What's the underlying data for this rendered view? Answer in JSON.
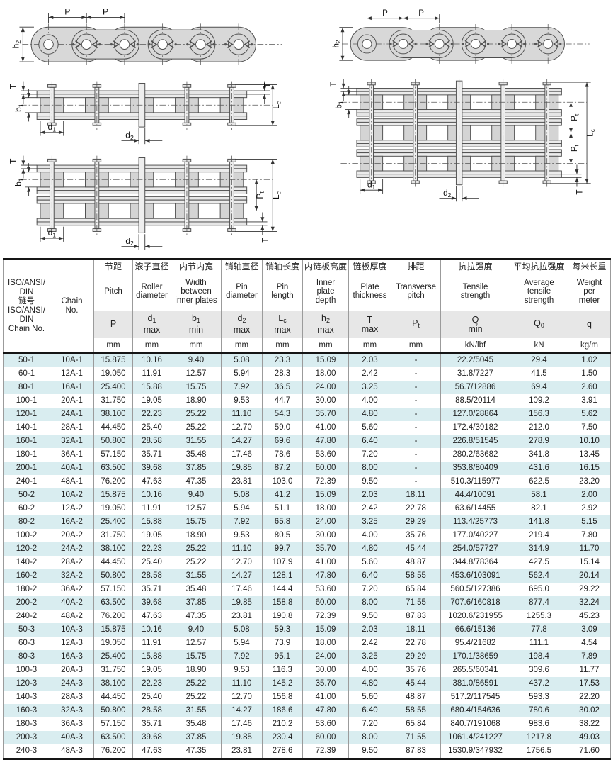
{
  "diagrams": {
    "dim_labels": {
      "pitch": {
        "base": "P",
        "sub": ""
      },
      "inner_height": {
        "base": "h",
        "sub": "2"
      },
      "thickness": {
        "base": "T",
        "sub": ""
      },
      "inner_width": {
        "base": "b",
        "sub": "1"
      },
      "roller_d": {
        "base": "d",
        "sub": "1"
      },
      "pin_d": {
        "base": "d",
        "sub": "2"
      },
      "pin_len": {
        "base": "L",
        "sub": "c"
      },
      "trans_pitch": {
        "base": "P",
        "sub": "t"
      }
    },
    "colors": {
      "plate_fill": "#d8d8d8",
      "strip_fill": "#e6e6e6",
      "roller_fill": "#d4d4d4",
      "outline": "#4d4d4d",
      "dim_line": "#333333"
    }
  },
  "table": {
    "colors": {
      "row_alt": "#d9edf0",
      "symbol_band": "#e7e7e7",
      "heavy_border": "#151515",
      "grid": "#9b9b9b"
    },
    "corner_zh": "ISO/ANSI/\nDIN\n链号",
    "corner_en": "ISO/ANSI/\nDIN\nChain No.",
    "chain_no_header": "Chain\nNo.",
    "columns": [
      {
        "name_zh": "节距",
        "name_en": "Pitch",
        "base": "P",
        "sub": "",
        "qual": "",
        "unit": "mm"
      },
      {
        "name_zh": "滚子直径",
        "name_en": "Roller\ndiameter",
        "base": "d",
        "sub": "1",
        "qual": "max",
        "unit": "mm"
      },
      {
        "name_zh": "内节内宽",
        "name_en": "Width\nbetween\ninner plates",
        "base": "b",
        "sub": "1",
        "qual": "min",
        "unit": "mm"
      },
      {
        "name_zh": "销轴直径",
        "name_en": "Pin\ndiameter",
        "base": "d",
        "sub": "2",
        "qual": "max",
        "unit": "mm"
      },
      {
        "name_zh": "销轴长度",
        "name_en": "Pin\nlength",
        "base": "L",
        "sub": "c",
        "qual": "max",
        "unit": "mm"
      },
      {
        "name_zh": "内链板高度",
        "name_en": "Inner\nplate\ndepth",
        "base": "h",
        "sub": "2",
        "qual": "max",
        "unit": "mm"
      },
      {
        "name_zh": "链板厚度",
        "name_en": "Plate\nthickness",
        "base": "T",
        "sub": "",
        "qual": "max",
        "unit": "mm"
      },
      {
        "name_zh": "排距",
        "name_en": "Transverse\npitch",
        "base": "P",
        "sub": "t",
        "qual": "",
        "unit": "mm"
      },
      {
        "name_zh": "抗拉强度",
        "name_en": "Tensile\nstrength",
        "base": "Q",
        "sub": "",
        "qual": "min",
        "unit": "kN/lbf"
      },
      {
        "name_zh": "平均抗拉强度",
        "name_en": "Average\ntensile\nstrength",
        "base": "Q",
        "sub": "0",
        "qual": "",
        "unit": "kN"
      },
      {
        "name_zh": "每米长重",
        "name_en": "Weight\nper\nmeter",
        "base": "q",
        "sub": "",
        "qual": "",
        "unit": "kg/m"
      }
    ],
    "rows": [
      [
        "50-1",
        "10A-1",
        "15.875",
        "10.16",
        "9.40",
        "5.08",
        "23.3",
        "15.09",
        "2.03",
        "-",
        "22.2/5045",
        "29.4",
        "1.02"
      ],
      [
        "60-1",
        "12A-1",
        "19.050",
        "11.91",
        "12.57",
        "5.94",
        "28.3",
        "18.00",
        "2.42",
        "-",
        "31.8/7227",
        "41.5",
        "1.50"
      ],
      [
        "80-1",
        "16A-1",
        "25.400",
        "15.88",
        "15.75",
        "7.92",
        "36.5",
        "24.00",
        "3.25",
        "-",
        "56.7/12886",
        "69.4",
        "2.60"
      ],
      [
        "100-1",
        "20A-1",
        "31.750",
        "19.05",
        "18.90",
        "9.53",
        "44.7",
        "30.00",
        "4.00",
        "-",
        "88.5/20114",
        "109.2",
        "3.91"
      ],
      [
        "120-1",
        "24A-1",
        "38.100",
        "22.23",
        "25.22",
        "11.10",
        "54.3",
        "35.70",
        "4.80",
        "-",
        "127.0/28864",
        "156.3",
        "5.62"
      ],
      [
        "140-1",
        "28A-1",
        "44.450",
        "25.40",
        "25.22",
        "12.70",
        "59.0",
        "41.00",
        "5.60",
        "-",
        "172.4/39182",
        "212.0",
        "7.50"
      ],
      [
        "160-1",
        "32A-1",
        "50.800",
        "28.58",
        "31.55",
        "14.27",
        "69.6",
        "47.80",
        "6.40",
        "-",
        "226.8/51545",
        "278.9",
        "10.10"
      ],
      [
        "180-1",
        "36A-1",
        "57.150",
        "35.71",
        "35.48",
        "17.46",
        "78.6",
        "53.60",
        "7.20",
        "-",
        "280.2/63682",
        "341.8",
        "13.45"
      ],
      [
        "200-1",
        "40A-1",
        "63.500",
        "39.68",
        "37.85",
        "19.85",
        "87.2",
        "60.00",
        "8.00",
        "-",
        "353.8/80409",
        "431.6",
        "16.15"
      ],
      [
        "240-1",
        "48A-1",
        "76.200",
        "47.63",
        "47.35",
        "23.81",
        "103.0",
        "72.39",
        "9.50",
        "-",
        "510.3/115977",
        "622.5",
        "23.20"
      ],
      [
        "50-2",
        "10A-2",
        "15.875",
        "10.16",
        "9.40",
        "5.08",
        "41.2",
        "15.09",
        "2.03",
        "18.11",
        "44.4/10091",
        "58.1",
        "2.00"
      ],
      [
        "60-2",
        "12A-2",
        "19.050",
        "11.91",
        "12.57",
        "5.94",
        "51.1",
        "18.00",
        "2.42",
        "22.78",
        "63.6/14455",
        "82.1",
        "2.92"
      ],
      [
        "80-2",
        "16A-2",
        "25.400",
        "15.88",
        "15.75",
        "7.92",
        "65.8",
        "24.00",
        "3.25",
        "29.29",
        "113.4/25773",
        "141.8",
        "5.15"
      ],
      [
        "100-2",
        "20A-2",
        "31.750",
        "19.05",
        "18.90",
        "9.53",
        "80.5",
        "30.00",
        "4.00",
        "35.76",
        "177.0/40227",
        "219.4",
        "7.80"
      ],
      [
        "120-2",
        "24A-2",
        "38.100",
        "22.23",
        "25.22",
        "11.10",
        "99.7",
        "35.70",
        "4.80",
        "45.44",
        "254.0/57727",
        "314.9",
        "11.70"
      ],
      [
        "140-2",
        "28A-2",
        "44.450",
        "25.40",
        "25.22",
        "12.70",
        "107.9",
        "41.00",
        "5.60",
        "48.87",
        "344.8/78364",
        "427.5",
        "15.14"
      ],
      [
        "160-2",
        "32A-2",
        "50.800",
        "28.58",
        "31.55",
        "14.27",
        "128.1",
        "47.80",
        "6.40",
        "58.55",
        "453.6/103091",
        "562.4",
        "20.14"
      ],
      [
        "180-2",
        "36A-2",
        "57.150",
        "35.71",
        "35.48",
        "17.46",
        "144.4",
        "53.60",
        "7.20",
        "65.84",
        "560.5/127386",
        "695.0",
        "29.22"
      ],
      [
        "200-2",
        "40A-2",
        "63.500",
        "39.68",
        "37.85",
        "19.85",
        "158.8",
        "60.00",
        "8.00",
        "71.55",
        "707.6/160818",
        "877.4",
        "32.24"
      ],
      [
        "240-2",
        "48A-2",
        "76.200",
        "47.63",
        "47.35",
        "23.81",
        "190.8",
        "72.39",
        "9.50",
        "87.83",
        "1020.6/231955",
        "1255.3",
        "45.23"
      ],
      [
        "50-3",
        "10A-3",
        "15.875",
        "10.16",
        "9.40",
        "5.08",
        "59.3",
        "15.09",
        "2.03",
        "18.11",
        "66.6/15136",
        "77.8",
        "3.09"
      ],
      [
        "60-3",
        "12A-3",
        "19.050",
        "11.91",
        "12.57",
        "5.94",
        "73.9",
        "18.00",
        "2.42",
        "22.78",
        "95.4/21682",
        "111.1",
        "4.54"
      ],
      [
        "80-3",
        "16A-3",
        "25.400",
        "15.88",
        "15.75",
        "7.92",
        "95.1",
        "24.00",
        "3.25",
        "29.29",
        "170.1/38659",
        "198.4",
        "7.89"
      ],
      [
        "100-3",
        "20A-3",
        "31.750",
        "19.05",
        "18.90",
        "9.53",
        "116.3",
        "30.00",
        "4.00",
        "35.76",
        "265.5/60341",
        "309.6",
        "11.77"
      ],
      [
        "120-3",
        "24A-3",
        "38.100",
        "22.23",
        "25.22",
        "11.10",
        "145.2",
        "35.70",
        "4.80",
        "45.44",
        "381.0/86591",
        "437.2",
        "17.53"
      ],
      [
        "140-3",
        "28A-3",
        "44.450",
        "25.40",
        "25.22",
        "12.70",
        "156.8",
        "41.00",
        "5.60",
        "48.87",
        "517.2/117545",
        "593.3",
        "22.20"
      ],
      [
        "160-3",
        "32A-3",
        "50.800",
        "28.58",
        "31.55",
        "14.27",
        "186.6",
        "47.80",
        "6.40",
        "58.55",
        "680.4/154636",
        "780.6",
        "30.02"
      ],
      [
        "180-3",
        "36A-3",
        "57.150",
        "35.71",
        "35.48",
        "17.46",
        "210.2",
        "53.60",
        "7.20",
        "65.84",
        "840.7/191068",
        "983.6",
        "38.22"
      ],
      [
        "200-3",
        "40A-3",
        "63.500",
        "39.68",
        "37.85",
        "19.85",
        "230.4",
        "60.00",
        "8.00",
        "71.55",
        "1061.4/241227",
        "1217.8",
        "49.03"
      ],
      [
        "240-3",
        "48A-3",
        "76.200",
        "47.63",
        "47.35",
        "23.81",
        "278.6",
        "72.39",
        "9.50",
        "87.83",
        "1530.9/347932",
        "1756.5",
        "71.60"
      ]
    ]
  }
}
